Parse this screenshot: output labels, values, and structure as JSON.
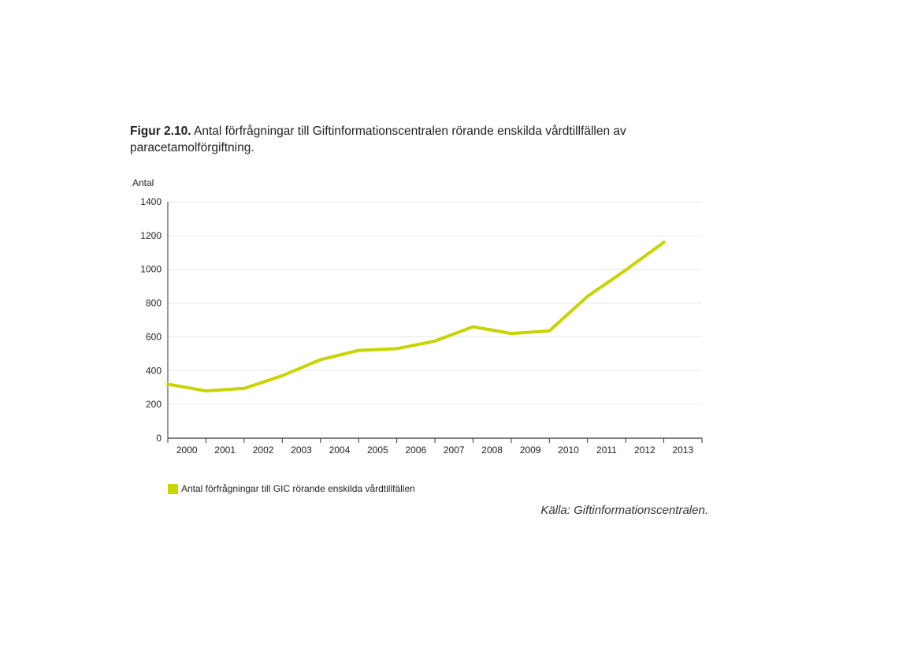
{
  "caption": {
    "label": "Figur 2.10.",
    "text": " Antal förfrågningar till Giftinformationscentralen rörande enskilda vårdtillfällen av paracetamolförgiftning."
  },
  "source": "Källa: Giftinformationscentralen.",
  "chart_data": {
    "type": "line",
    "ylabel": "Antal",
    "xlabel": "",
    "ylim": [
      0,
      1400
    ],
    "yticks": [
      0,
      200,
      400,
      600,
      800,
      1000,
      1200,
      1400
    ],
    "categories": [
      "2000",
      "2001",
      "2002",
      "2003",
      "2004",
      "2005",
      "2006",
      "2007",
      "2008",
      "2009",
      "2010",
      "2011",
      "2012",
      "2013"
    ],
    "grid": true,
    "legend_position": "bottom-left",
    "series": [
      {
        "name": "Antal förfrågningar till GIC rörande enskilda vårdtillfällen",
        "color": "#c8d400",
        "values": [
          320,
          280,
          295,
          370,
          465,
          520,
          530,
          575,
          660,
          620,
          635,
          840,
          995,
          1160
        ]
      }
    ]
  }
}
